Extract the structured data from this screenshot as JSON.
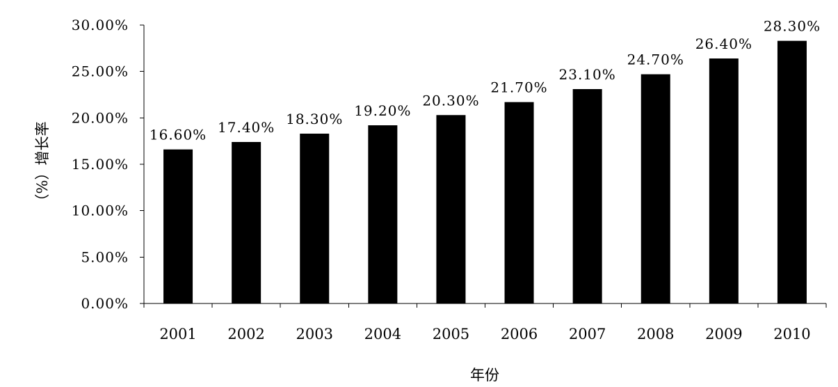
{
  "chart_data": {
    "type": "bar",
    "categories": [
      "2001",
      "2002",
      "2003",
      "2004",
      "2005",
      "2006",
      "2007",
      "2008",
      "2009",
      "2010"
    ],
    "values": [
      16.6,
      17.4,
      18.3,
      19.2,
      20.3,
      21.7,
      23.1,
      24.7,
      26.4,
      28.3
    ],
    "data_labels": [
      "16.60%",
      "17.40%",
      "18.30%",
      "19.20%",
      "20.30%",
      "21.70%",
      "23.10%",
      "24.70%",
      "26.40%",
      "28.30%"
    ],
    "y_ticks": [
      0,
      5,
      10,
      15,
      20,
      25,
      30
    ],
    "y_tick_labels": [
      "0.00%",
      "5.00%",
      "10.00%",
      "15.00%",
      "20.00%",
      "25.00%",
      "30.00%"
    ],
    "title": "",
    "xlabel": "年份",
    "ylabel": "（%）增长率",
    "ylim": [
      0,
      30
    ],
    "grid": false,
    "legend": "none",
    "bar_color": "#000000"
  }
}
